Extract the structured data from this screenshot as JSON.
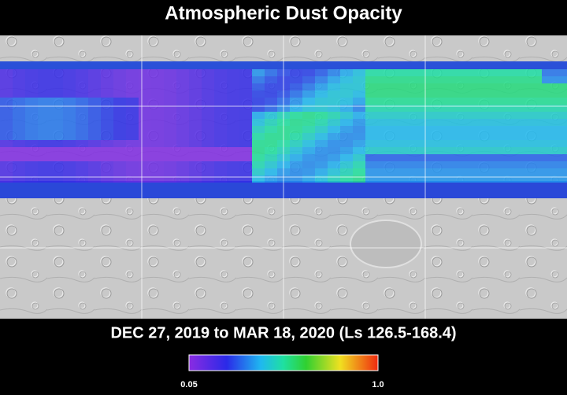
{
  "title": "Atmospheric Dust Opacity",
  "subtitle": "DEC 27, 2019 to MAR 18, 2020 (Ls 126.5-168.4)",
  "colorbar": {
    "min_label": "0.05",
    "max_label": "1.0"
  }
}
